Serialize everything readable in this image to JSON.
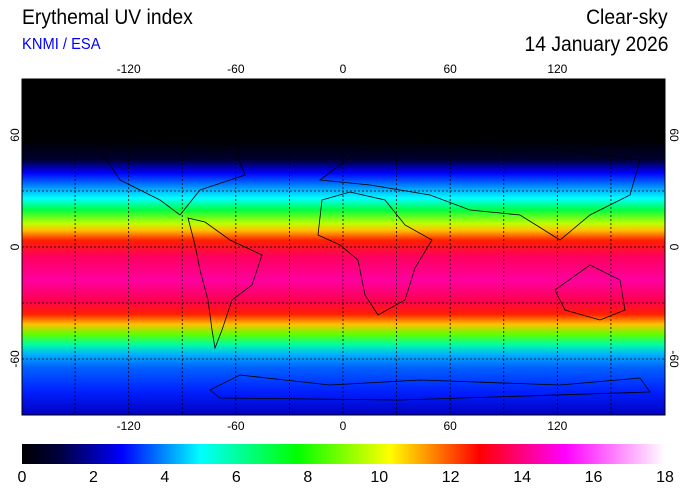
{
  "header": {
    "title": "Erythemal UV index",
    "source": "KNMI / ESA",
    "mode": "Clear-sky",
    "date": "14 January 2026"
  },
  "map": {
    "lon_ticks": [
      "-120",
      "-60",
      "0",
      "60",
      "120"
    ],
    "lat_ticks": [
      "60",
      "0",
      "-60"
    ],
    "lon_range": [
      -180,
      180
    ],
    "lat_range": [
      -90,
      90
    ],
    "gridlines": true
  },
  "colorbar": {
    "ticks": [
      "0",
      "2",
      "4",
      "6",
      "8",
      "10",
      "12",
      "14",
      "16",
      "18"
    ],
    "range": [
      0,
      18
    ],
    "stops": [
      {
        "value": 0,
        "color": "#000000"
      },
      {
        "value": 1,
        "color": "#00003a"
      },
      {
        "value": 2.8,
        "color": "#0000ff"
      },
      {
        "value": 5,
        "color": "#00ffff"
      },
      {
        "value": 7.7,
        "color": "#00ff00"
      },
      {
        "value": 10.3,
        "color": "#ffff00"
      },
      {
        "value": 12.8,
        "color": "#ff0000"
      },
      {
        "value": 15.2,
        "color": "#ff00ff"
      },
      {
        "value": 18,
        "color": "#ffffff"
      }
    ]
  }
}
